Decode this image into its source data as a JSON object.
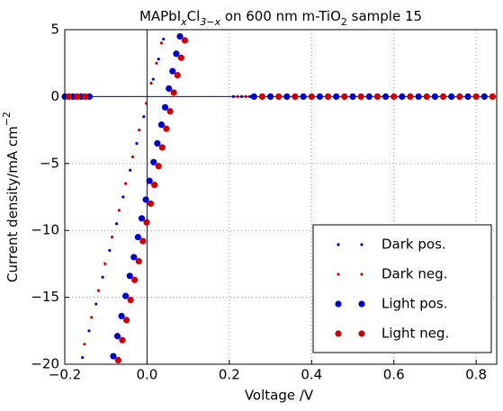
{
  "chart_data": {
    "type": "scatter",
    "title": [
      {
        "text": "MAPbI"
      },
      {
        "text": "x",
        "sub": true,
        "italic": true
      },
      {
        "text": "Cl"
      },
      {
        "text": "3−x",
        "sub": true,
        "italic": true
      },
      {
        "text": " on 600 nm m-TiO"
      },
      {
        "text": "2",
        "sub": true
      },
      {
        "text": " sample 15"
      }
    ],
    "xlabel": "Voltage /V",
    "ylabel": [
      {
        "text": "Current density/mA cm"
      },
      {
        "text": "−2",
        "sup": true
      }
    ],
    "xlim": [
      -0.2,
      0.85
    ],
    "ylim": [
      -20,
      5
    ],
    "xticks": [
      {
        "value": -0.2,
        "label": "−0.2"
      },
      {
        "value": 0,
        "label": "0.0"
      },
      0.2,
      0.4,
      0.6,
      0.8
    ],
    "yticks": [
      5,
      0,
      {
        "value": -5,
        "label": "−5"
      },
      {
        "value": -10,
        "label": "−10"
      },
      {
        "value": -15,
        "label": "−15"
      },
      {
        "value": -20,
        "label": "−20"
      }
    ],
    "grid": true,
    "legend": "lower right",
    "hline": 0,
    "vline": 0,
    "ref_color": "#0000cc",
    "series": [
      {
        "name": "Dark pos.",
        "color": "#0000cc",
        "marker_radius": 1.6,
        "x": [
          -0.19,
          -0.15,
          0.21,
          0.23,
          0.25,
          0.04,
          0.028,
          0.015,
          -0.008,
          -0.025,
          -0.041,
          -0.058,
          -0.074,
          -0.091,
          -0.108,
          -0.124,
          -0.141,
          -0.157
        ],
        "values": [
          0,
          0,
          0,
          0,
          0,
          4.3,
          2.8,
          1.3,
          -1.5,
          -3.5,
          -5.5,
          -7.5,
          -9.5,
          -11.5,
          -13.5,
          -15.5,
          -17.5,
          -19.5
        ]
      },
      {
        "name": "Dark neg.",
        "color": "#cc0000",
        "marker_radius": 1.6,
        "x": [
          -0.18,
          -0.14,
          0.22,
          0.24,
          0.035,
          0.023,
          0.01,
          -0.002,
          -0.019,
          -0.035,
          -0.052,
          -0.068,
          -0.085,
          -0.102,
          -0.118,
          -0.135,
          -0.152
        ],
        "values": [
          0,
          0,
          0,
          0,
          4.0,
          2.5,
          1.0,
          -0.5,
          -2.5,
          -4.5,
          -6.5,
          -8.5,
          -10.5,
          -12.5,
          -14.5,
          -16.5,
          -18.5
        ]
      },
      {
        "name": "Light pos.",
        "color": "#0000cc",
        "marker_radius": 3.6,
        "x": [
          -0.2,
          -0.18,
          -0.16,
          -0.14,
          0.26,
          0.3,
          0.34,
          0.38,
          0.42,
          0.46,
          0.5,
          0.54,
          0.58,
          0.62,
          0.66,
          0.7,
          0.74,
          0.78,
          0.82,
          0.08,
          0.071,
          0.062,
          0.053,
          0.044,
          0.035,
          0.025,
          0.016,
          0.006,
          -0.003,
          -0.013,
          -0.022,
          -0.032,
          -0.042,
          -0.052,
          -0.062,
          -0.072,
          -0.082
        ],
        "values": [
          0,
          0,
          0,
          0,
          0,
          0,
          0,
          0,
          0,
          0,
          0,
          0,
          0,
          0,
          0,
          0,
          0,
          0,
          0,
          4.5,
          3.2,
          1.9,
          0.6,
          -0.8,
          -2.1,
          -3.5,
          -4.9,
          -6.3,
          -7.7,
          -9.1,
          -10.5,
          -12.0,
          -13.4,
          -14.9,
          -16.4,
          -17.9,
          -19.4
        ]
      },
      {
        "name": "Light neg.",
        "color": "#cc0000",
        "marker_radius": 3.6,
        "x": [
          -0.19,
          -0.17,
          -0.15,
          0.28,
          0.32,
          0.36,
          0.4,
          0.44,
          0.48,
          0.52,
          0.56,
          0.6,
          0.64,
          0.68,
          0.72,
          0.76,
          0.8,
          0.84,
          0.092,
          0.083,
          0.074,
          0.065,
          0.056,
          0.047,
          0.037,
          0.028,
          0.018,
          0.009,
          -0.001,
          -0.01,
          -0.02,
          -0.03,
          -0.04,
          -0.05,
          -0.06,
          -0.07
        ],
        "values": [
          0,
          0,
          0,
          0,
          0,
          0,
          0,
          0,
          0,
          0,
          0,
          0,
          0,
          0,
          0,
          0,
          0,
          0,
          4.2,
          2.9,
          1.6,
          0.3,
          -1.1,
          -2.4,
          -3.8,
          -5.2,
          -6.6,
          -8.0,
          -9.4,
          -10.8,
          -12.3,
          -13.7,
          -15.2,
          -16.7,
          -18.2,
          -19.7
        ]
      }
    ]
  }
}
